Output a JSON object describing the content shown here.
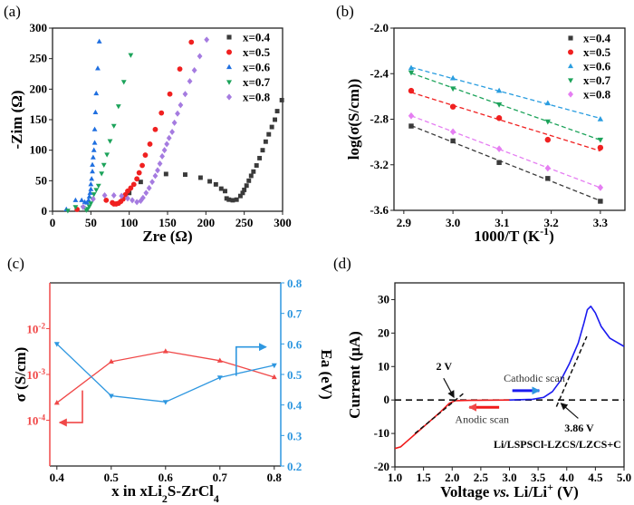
{
  "chart_data": [
    {
      "panel": "(a)",
      "type": "scatter",
      "xlabel": "Zre (Ω)",
      "ylabel": "-Zim (Ω)",
      "xlim": [
        0,
        300
      ],
      "ylim": [
        0,
        300
      ],
      "xticks": [
        "0",
        "50",
        "100",
        "150",
        "200",
        "250",
        "300"
      ],
      "yticks": [
        "0",
        "50",
        "100",
        "150",
        "200",
        "250",
        "300"
      ],
      "legend_position": "top-right",
      "series": [
        {
          "name": "x=0.4",
          "color": "#3a3a3a",
          "marker": "square",
          "points": [
            [
              100,
              30
            ],
            [
              115,
              48
            ],
            [
              148,
              61
            ],
            [
              173,
              60
            ],
            [
              193,
              55
            ],
            [
              205,
              49
            ],
            [
              213,
              44
            ],
            [
              220,
              37
            ],
            [
              225,
              33
            ],
            [
              227,
              21
            ],
            [
              230,
              19
            ],
            [
              235,
              18
            ],
            [
              240,
              19
            ],
            [
              245,
              25
            ],
            [
              248,
              30
            ],
            [
              250,
              35
            ],
            [
              253,
              42
            ],
            [
              256,
              50
            ],
            [
              259,
              58
            ],
            [
              262,
              65
            ],
            [
              266,
              75
            ],
            [
              270,
              87
            ],
            [
              274,
              100
            ],
            [
              278,
              114
            ],
            [
              282,
              126
            ],
            [
              286,
              138
            ],
            [
              290,
              150
            ],
            [
              293,
              164
            ],
            [
              299,
              182
            ]
          ]
        },
        {
          "name": "x=0.5",
          "color": "#f02020",
          "marker": "circle",
          "points": [
            [
              32,
              3
            ],
            [
              70,
              18
            ],
            [
              78,
              14
            ],
            [
              80,
              12
            ],
            [
              83,
              12
            ],
            [
              86,
              13
            ],
            [
              89,
              16
            ],
            [
              92,
              20
            ],
            [
              95,
              27
            ],
            [
              98,
              33
            ],
            [
              102,
              38
            ],
            [
              106,
              44
            ],
            [
              110,
              53
            ],
            [
              113,
              63
            ],
            [
              117,
              75
            ],
            [
              121,
              92
            ],
            [
              127,
              110
            ],
            [
              134,
              134
            ],
            [
              142,
              161
            ],
            [
              153,
              192
            ],
            [
              166,
              233
            ],
            [
              181,
              277
            ]
          ]
        },
        {
          "name": "x=0.6",
          "color": "#1f6fe0",
          "marker": "triangle-up",
          "points": [
            [
              18,
              3
            ],
            [
              30,
              18
            ],
            [
              38,
              18
            ],
            [
              42,
              15
            ],
            [
              45,
              14
            ],
            [
              47,
              18
            ],
            [
              48,
              24
            ],
            [
              49,
              30
            ],
            [
              50,
              36
            ],
            [
              50,
              44
            ],
            [
              51,
              53
            ],
            [
              52,
              65
            ],
            [
              52,
              76
            ],
            [
              53,
              88
            ],
            [
              54,
              100
            ],
            [
              55,
              112
            ],
            [
              55,
              134
            ],
            [
              56,
              162
            ],
            [
              57,
              193
            ],
            [
              59,
              234
            ],
            [
              61,
              278
            ]
          ]
        },
        {
          "name": "x=0.7",
          "color": "#1ca35a",
          "marker": "triangle-down",
          "points": [
            [
              20,
              1
            ],
            [
              30,
              7
            ],
            [
              40,
              6
            ],
            [
              44,
              2
            ],
            [
              46,
              4
            ],
            [
              48,
              8
            ],
            [
              50,
              13
            ],
            [
              52,
              20
            ],
            [
              54,
              28
            ],
            [
              57,
              35
            ],
            [
              60,
              42
            ],
            [
              64,
              62
            ],
            [
              67,
              76
            ],
            [
              71,
              93
            ],
            [
              75,
              115
            ],
            [
              80,
              140
            ],
            [
              86,
              172
            ],
            [
              93,
              212
            ],
            [
              102,
              256
            ]
          ]
        },
        {
          "name": "x=0.8",
          "color": "#a57be0",
          "marker": "diamond",
          "points": [
            [
              40,
              7
            ],
            [
              53,
              20
            ],
            [
              68,
              26
            ],
            [
              80,
              26
            ],
            [
              90,
              25
            ],
            [
              98,
              21
            ],
            [
              104,
              18
            ],
            [
              110,
              15
            ],
            [
              115,
              17
            ],
            [
              118,
              22
            ],
            [
              122,
              30
            ],
            [
              126,
              38
            ],
            [
              130,
              48
            ],
            [
              134,
              58
            ],
            [
              137,
              67
            ],
            [
              140,
              78
            ],
            [
              143,
              90
            ],
            [
              146,
              100
            ],
            [
              149,
              110
            ],
            [
              152,
              120
            ],
            [
              156,
              130
            ],
            [
              159,
              145
            ],
            [
              163,
              160
            ],
            [
              167,
              174
            ],
            [
              173,
              192
            ],
            [
              179,
              213
            ],
            [
              185,
              231
            ],
            [
              192,
              254
            ],
            [
              201,
              281
            ]
          ]
        }
      ]
    },
    {
      "panel": "(b)",
      "type": "scatter",
      "xlabel_parts": [
        {
          "text": "1000/T (K"
        },
        {
          "text": "-1",
          "sup": true
        },
        {
          "text": ")"
        }
      ],
      "ylabel": "log(σ(S/cm))",
      "xlim": [
        2.88,
        3.35
      ],
      "ylim": [
        -3.6,
        -2.0
      ],
      "xtick_values": [
        2.9,
        3.0,
        3.1,
        3.2,
        3.3
      ],
      "xticks": [
        "2.9",
        "3.0",
        "3.1",
        "3.2",
        "3.3"
      ],
      "ytick_values": [
        -3.6,
        -3.2,
        -2.8,
        -2.4,
        -2.0
      ],
      "yticks": [
        "-3.6",
        "-3.2",
        "-2.8",
        "-2.4",
        "-2.0"
      ],
      "legend_position": "top-right",
      "x": [
        2.915,
        3.0,
        3.094,
        3.193,
        3.3
      ],
      "series": [
        {
          "name": "x=0.4",
          "color": "#3a3a3a",
          "marker": "square",
          "values": [
            -2.86,
            -2.99,
            -3.18,
            -3.32,
            -3.52
          ]
        },
        {
          "name": "x=0.5",
          "color": "#f02020",
          "marker": "circle",
          "values": [
            -2.55,
            -2.69,
            -2.79,
            -2.98,
            -3.05
          ]
        },
        {
          "name": "x=0.6",
          "color": "#2a9de0",
          "marker": "triangle-up",
          "values": [
            -2.35,
            -2.44,
            -2.55,
            -2.66,
            -2.8
          ]
        },
        {
          "name": "x=0.7",
          "color": "#1ca35a",
          "marker": "triangle-down",
          "values": [
            -2.39,
            -2.53,
            -2.67,
            -2.82,
            -2.98
          ]
        },
        {
          "name": "x=0.8",
          "color": "#e57ef2",
          "marker": "diamond",
          "values": [
            -2.77,
            -2.91,
            -3.06,
            -3.23,
            -3.4
          ]
        }
      ],
      "fit": "linear dashed"
    },
    {
      "panel": "(c)",
      "type": "line",
      "xlabel_parts": [
        {
          "text": "x in xLi"
        },
        {
          "text": "2",
          "sub": true
        },
        {
          "text": "S-ZrCl"
        },
        {
          "text": "4",
          "sub": true
        }
      ],
      "ylabel_left": "σ (S/cm)",
      "ylabel_right": "Ea (eV)",
      "xlim": [
        0.387,
        0.812
      ],
      "ylim_left_log10": [
        -5,
        -1
      ],
      "ylim_right": [
        0.2,
        0.8
      ],
      "x": [
        0.4,
        0.5,
        0.6,
        0.7,
        0.8
      ],
      "xticks": [
        "0.4",
        "0.5",
        "0.6",
        "0.7",
        "0.8"
      ],
      "yticks_left": [
        {
          "base": "10",
          "exp": "-4",
          "log": -4
        },
        {
          "base": "10",
          "exp": "-3",
          "log": -3
        },
        {
          "base": "10",
          "exp": "-2",
          "log": -2
        }
      ],
      "yticks_right": [
        "0.2",
        "0.3",
        "0.4",
        "0.5",
        "0.6",
        "0.7",
        "0.8"
      ],
      "series": [
        {
          "name": "σ",
          "axis": "left",
          "color": "#f04848",
          "marker": "triangle-up",
          "values": [
            0.00024,
            0.0019,
            0.0032,
            0.002,
            0.00087
          ]
        },
        {
          "name": "Ea",
          "axis": "right",
          "color": "#2e97e0",
          "marker": "triangle-down",
          "values": [
            0.6,
            0.43,
            0.41,
            0.49,
            0.53
          ]
        }
      ]
    },
    {
      "panel": "(d)",
      "type": "line",
      "xlabel_parts": [
        {
          "text": "Voltage "
        },
        {
          "text": "vs.",
          "italic": true
        },
        {
          "text": " Li/Li"
        },
        {
          "text": "+",
          "sup": true
        },
        {
          "text": "  (V)"
        }
      ],
      "ylabel": "Current  (μA)",
      "xlim": [
        1.0,
        5.0
      ],
      "ylim": [
        -20,
        35
      ],
      "xticks": [
        "1.0",
        "1.5",
        "2.0",
        "2.5",
        "3.0",
        "3.5",
        "4.0",
        "4.5",
        "5.0"
      ],
      "ytick_values": [
        -20,
        -10,
        0,
        10,
        20,
        30
      ],
      "yticks": [
        "-20",
        "-10",
        "0",
        "10",
        "20",
        "30"
      ],
      "series": [
        {
          "name": "Anodic scan",
          "color": "#f01a1a",
          "points": [
            [
              1.0,
              -14.5
            ],
            [
              1.1,
              -14
            ],
            [
              1.2,
              -12.5
            ],
            [
              1.4,
              -9.5
            ],
            [
              1.6,
              -6.5
            ],
            [
              1.8,
              -3.5
            ],
            [
              1.95,
              -1
            ],
            [
              2.05,
              -0.2
            ],
            [
              2.3,
              -0.1
            ],
            [
              3.0,
              0
            ]
          ]
        },
        {
          "name": "Cathodic scan",
          "color": "#1a1af0",
          "points": [
            [
              3.0,
              0
            ],
            [
              3.4,
              0.2
            ],
            [
              3.6,
              0.8
            ],
            [
              3.75,
              2.5
            ],
            [
              3.9,
              6
            ],
            [
              4.05,
              11
            ],
            [
              4.2,
              17
            ],
            [
              4.3,
              23
            ],
            [
              4.36,
              27
            ],
            [
              4.42,
              28
            ],
            [
              4.5,
              26
            ],
            [
              4.6,
              22
            ],
            [
              4.75,
              18.5
            ],
            [
              5.0,
              16
            ]
          ]
        }
      ],
      "tangents": [
        [
          [
            1.35,
            -10
          ],
          [
            2.2,
            2
          ]
        ],
        [
          [
            3.82,
            -2
          ],
          [
            4.35,
            19
          ]
        ]
      ],
      "annotations": {
        "onset_low": "2 V",
        "cathodic": "Cathodic scan",
        "anodic": "Anodic scan",
        "onset_high": "3.86 V",
        "cell": "Li/LSPSCl-LZCS/LZCS+C"
      }
    }
  ]
}
